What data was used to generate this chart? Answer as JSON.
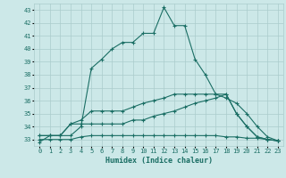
{
  "xlabel": "Humidex (Indice chaleur)",
  "xlim": [
    -0.5,
    23.5
  ],
  "ylim": [
    32.5,
    43.5
  ],
  "yticks": [
    33,
    34,
    35,
    36,
    37,
    38,
    39,
    40,
    41,
    42,
    43
  ],
  "xticks": [
    0,
    1,
    2,
    3,
    4,
    5,
    6,
    7,
    8,
    9,
    10,
    11,
    12,
    13,
    14,
    15,
    16,
    17,
    18,
    19,
    20,
    21,
    22,
    23
  ],
  "background_color": "#cce8e8",
  "grid_color": "#aacccc",
  "line_color": "#1a6e64",
  "lines": [
    [
      32.8,
      33.3,
      33.3,
      33.3,
      34.0,
      38.5,
      39.2,
      40.0,
      40.5,
      40.5,
      41.2,
      41.2,
      43.2,
      41.8,
      41.8,
      39.2,
      38.0,
      36.5,
      36.5,
      35.0,
      34.0,
      33.2,
      33.0,
      32.9
    ],
    [
      33.3,
      33.3,
      33.3,
      34.2,
      34.2,
      34.2,
      34.2,
      34.2,
      34.2,
      34.5,
      34.5,
      34.8,
      35.0,
      35.2,
      35.5,
      35.8,
      36.0,
      36.2,
      36.5,
      35.0,
      34.0,
      33.2,
      33.0,
      32.9
    ],
    [
      33.0,
      33.0,
      33.0,
      33.0,
      33.2,
      33.3,
      33.3,
      33.3,
      33.3,
      33.3,
      33.3,
      33.3,
      33.3,
      33.3,
      33.3,
      33.3,
      33.3,
      33.3,
      33.2,
      33.2,
      33.1,
      33.1,
      33.0,
      32.9
    ],
    [
      33.3,
      33.3,
      33.3,
      34.2,
      34.5,
      35.2,
      35.2,
      35.2,
      35.2,
      35.5,
      35.8,
      36.0,
      36.2,
      36.5,
      36.5,
      36.5,
      36.5,
      36.5,
      36.2,
      35.8,
      35.0,
      34.0,
      33.2,
      32.9
    ]
  ]
}
